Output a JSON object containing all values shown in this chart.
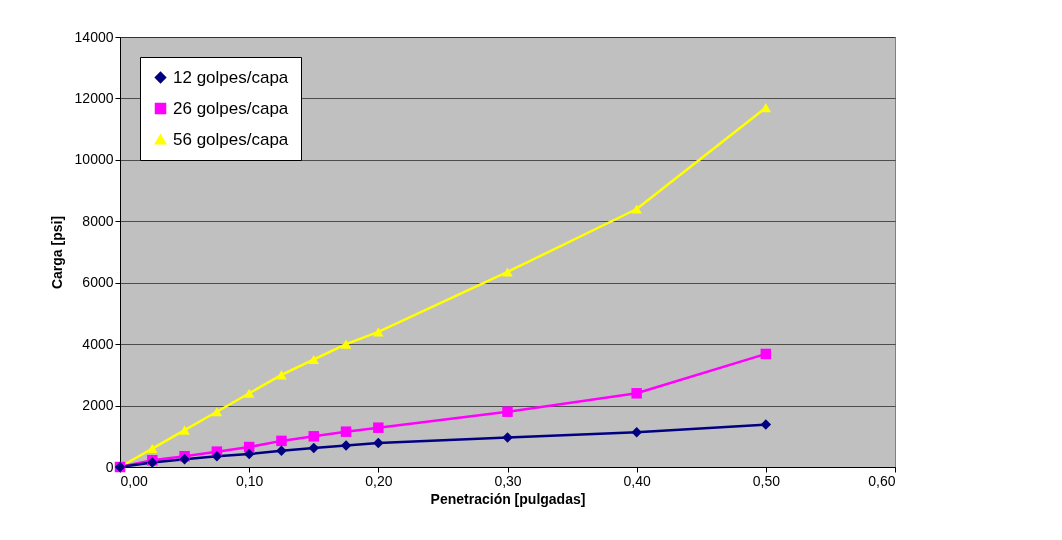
{
  "chart_data": {
    "type": "line",
    "xlabel": "Penetración [pulgadas]",
    "ylabel": "Carga [psi]",
    "x": [
      0,
      0.025,
      0.05,
      0.075,
      0.1,
      0.125,
      0.15,
      0.175,
      0.2,
      0.3,
      0.4,
      0.5
    ],
    "series": [
      {
        "name": "12 golpes/capa",
        "color": "#000080",
        "marker": "diamond",
        "values": [
          0,
          150,
          250,
          350,
          420,
          530,
          620,
          700,
          780,
          960,
          1130,
          1380
        ]
      },
      {
        "name": "26 golpes/capa",
        "color": "#ff00ff",
        "marker": "square",
        "values": [
          0,
          220,
          350,
          500,
          650,
          850,
          1000,
          1150,
          1280,
          1800,
          2400,
          3680
        ]
      },
      {
        "name": "56 golpes/capa",
        "color": "#ffff00",
        "marker": "triangle",
        "values": [
          0,
          600,
          1200,
          1800,
          2400,
          3000,
          3500,
          4000,
          4400,
          6350,
          8400,
          11700
        ]
      }
    ],
    "xlim": [
      0,
      0.6
    ],
    "xticks": [
      {
        "value": 0,
        "label": "0,00"
      },
      {
        "value": 0.1,
        "label": "0,10"
      },
      {
        "value": 0.2,
        "label": "0,20"
      },
      {
        "value": 0.3,
        "label": "0,30"
      },
      {
        "value": 0.4,
        "label": "0,40"
      },
      {
        "value": 0.5,
        "label": "0,50"
      },
      {
        "value": 0.6,
        "label": "0,60"
      }
    ],
    "ylim": [
      0,
      14000
    ],
    "yticks": [
      0,
      2000,
      4000,
      6000,
      8000,
      10000,
      12000,
      14000
    ],
    "grid": "y",
    "legend": "top left",
    "line_style": "solid"
  }
}
